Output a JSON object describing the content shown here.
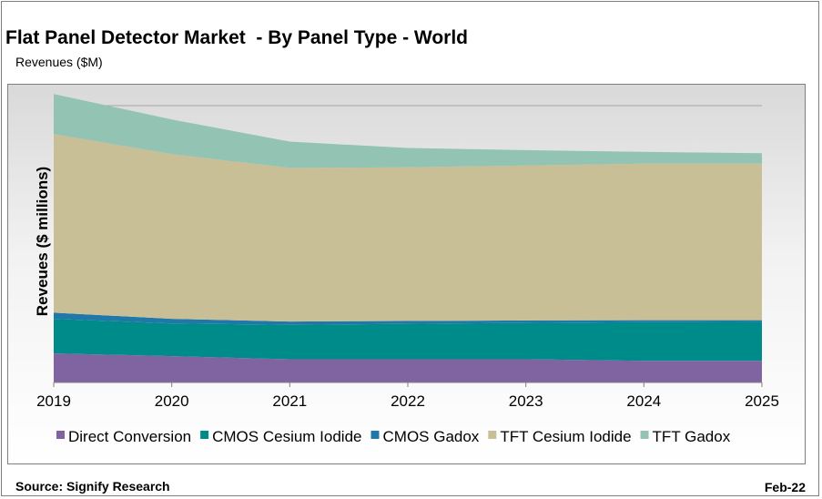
{
  "title": "Flat Panel Detector Market  - By Panel Type - World",
  "subtitle": "Revenues ($M)",
  "source": "Source: Signify Research",
  "date": "Feb-22",
  "chart_data": {
    "type": "area",
    "stacked": true,
    "x": [
      "2019",
      "2020",
      "2021",
      "2022",
      "2023",
      "2024",
      "2025"
    ],
    "ylabel": "Reveues ($ millions)",
    "ylim": [
      0,
      100
    ],
    "grid": true,
    "legend_position": "bottom",
    "series": [
      {
        "name": "Direct Conversion",
        "color": "#8064a2",
        "values": [
          10.5,
          9.5,
          8.4,
          8.4,
          8.4,
          7.8,
          7.8
        ]
      },
      {
        "name": "CMOS Cesium Iodide",
        "color": "#008b8b",
        "values": [
          12.5,
          11.8,
          12.4,
          12.8,
          13.1,
          14.0,
          14.1
        ]
      },
      {
        "name": "CMOS Gadox",
        "color": "#1f78a8",
        "values": [
          2.2,
          1.7,
          1.2,
          1.0,
          0.9,
          0.7,
          0.6
        ]
      },
      {
        "name": "TFT Cesium Iodide",
        "color": "#c8bf96",
        "values": [
          64.5,
          59.5,
          55.5,
          55.5,
          56.0,
          56.5,
          56.5
        ]
      },
      {
        "name": "TFT Gadox",
        "color": "#93c4b3",
        "values": [
          14.5,
          12.5,
          9.5,
          7.0,
          5.5,
          4.3,
          3.8
        ]
      }
    ]
  }
}
